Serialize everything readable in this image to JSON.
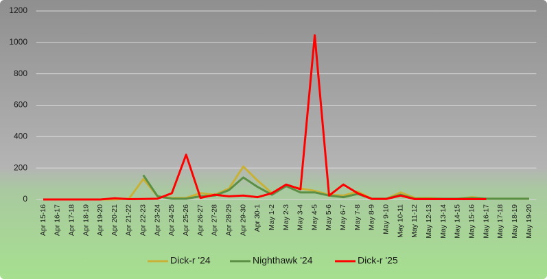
{
  "chart_data": {
    "type": "line",
    "categories": [
      "Apr 15-16",
      "Apr 16-17",
      "Apr 17-18",
      "Apr 18-19",
      "Apr 19-20",
      "Apr 20-21",
      "Apr 21-22",
      "Apr 22-23",
      "Apr 23-24",
      "Apr 24-25",
      "Apr 25-26",
      "Apr 26-27",
      "Apr 27-28",
      "Apr 28-29",
      "Apr 29-30",
      "Apr 30-1",
      "May 1-2",
      "May 2-3",
      "May 3-4",
      "May 4-5",
      "May 5-6",
      "May 6-7",
      "May 7-8",
      "May 8-9",
      "May 9-10",
      "May 10-11",
      "May 11-12",
      "May 12-13",
      "May 13-14",
      "May 14-15",
      "May 15-16",
      "May 16-17",
      "May 17-18",
      "May 18-19",
      "May 19-20"
    ],
    "series": [
      {
        "name": "Dick-r '24",
        "color": "#c9b037",
        "values": [
          0,
          0,
          0,
          0,
          0,
          0,
          5,
          130,
          20,
          10,
          10,
          40,
          30,
          70,
          210,
          120,
          40,
          90,
          70,
          55,
          30,
          25,
          50,
          5,
          5,
          45,
          10,
          10,
          5,
          5,
          15,
          5,
          5,
          5,
          5
        ]
      },
      {
        "name": "Nighthawk '24",
        "color": "#5b8f45",
        "values": [
          null,
          null,
          null,
          null,
          null,
          null,
          null,
          155,
          20,
          5,
          5,
          20,
          25,
          60,
          140,
          80,
          30,
          85,
          45,
          45,
          25,
          15,
          35,
          5,
          5,
          30,
          5,
          5,
          5,
          5,
          10,
          5,
          5,
          5,
          5
        ]
      },
      {
        "name": "Dick-r '25",
        "color": "#ff0000",
        "values": [
          0,
          0,
          0,
          0,
          0,
          8,
          2,
          3,
          5,
          40,
          285,
          10,
          30,
          20,
          25,
          15,
          40,
          95,
          65,
          1045,
          25,
          95,
          40,
          3,
          3,
          25,
          2,
          2,
          2,
          2,
          2,
          2,
          null,
          null,
          null
        ]
      }
    ],
    "ylim": [
      0,
      1200
    ],
    "yticks": [
      0,
      200,
      400,
      600,
      800,
      1000,
      1200
    ],
    "grid": true,
    "legend": "bottom"
  }
}
